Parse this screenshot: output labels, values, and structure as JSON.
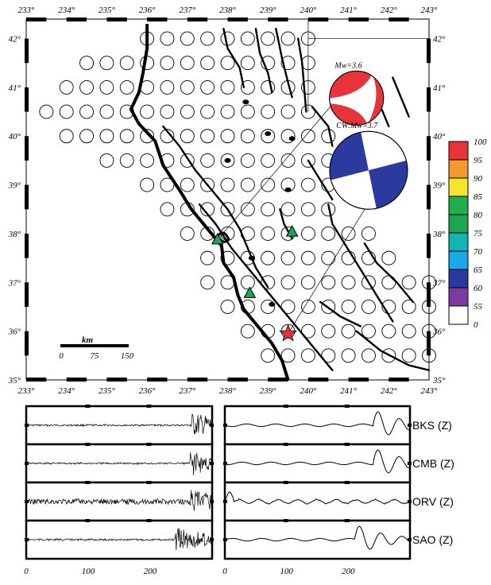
{
  "map": {
    "lon_ticks": [
      "233°",
      "234°",
      "235°",
      "236°",
      "237°",
      "238°",
      "239°",
      "240°",
      "241°",
      "242°",
      "243°"
    ],
    "lat_ticks": [
      "35°",
      "36°",
      "37°",
      "38°",
      "39°",
      "40°",
      "41°",
      "42°"
    ],
    "lon_range": [
      233,
      243
    ],
    "lat_range": [
      35,
      42.4
    ],
    "scale_bar": {
      "unit": "km",
      "labels": [
        "0",
        "75",
        "150"
      ]
    },
    "grid_rows": [
      {
        "lat": 42.0,
        "lon_start": 236.0,
        "lon_end": 240.0
      },
      {
        "lat": 41.5,
        "lon_start": 234.5,
        "lon_end": 240.0
      },
      {
        "lat": 41.0,
        "lon_start": 234.0,
        "lon_end": 240.0
      },
      {
        "lat": 40.5,
        "lon_start": 233.5,
        "lon_end": 240.0
      },
      {
        "lat": 40.0,
        "lon_start": 234.0,
        "lon_end": 240.5
      },
      {
        "lat": 39.5,
        "lon_start": 235.0,
        "lon_end": 240.5
      },
      {
        "lat": 39.0,
        "lon_start": 236.0,
        "lon_end": 240.5
      },
      {
        "lat": 38.5,
        "lon_start": 236.5,
        "lon_end": 240.5
      },
      {
        "lat": 38.0,
        "lon_start": 237.0,
        "lon_end": 241.5
      },
      {
        "lat": 37.5,
        "lon_start": 237.5,
        "lon_end": 242.0
      },
      {
        "lat": 37.0,
        "lon_start": 237.5,
        "lon_end": 243.0
      },
      {
        "lat": 36.5,
        "lon_start": 238.0,
        "lon_end": 243.0
      },
      {
        "lat": 36.0,
        "lon_start": 238.5,
        "lon_end": 243.0
      },
      {
        "lat": 35.5,
        "lon_start": 239.0,
        "lon_end": 243.0
      }
    ],
    "stations": [
      {
        "name": "BKS",
        "lon": 237.75,
        "lat": 37.87
      },
      {
        "name": "CMB",
        "lon": 239.6,
        "lat": 38.03
      },
      {
        "name": "SAO",
        "lon": 238.55,
        "lat": 36.77
      }
    ],
    "epicenter": {
      "lon": 239.5,
      "lat": 35.95,
      "color": "#e8333a"
    },
    "mechanisms": [
      {
        "label": "Mw=3.6",
        "color": "#e8333a",
        "lon": 241.2,
        "lat": 40.78
      },
      {
        "label": "CW:Mw=3.7",
        "color": "#2b3a9e",
        "lon": 241.5,
        "lat": 39.3
      }
    ]
  },
  "colorbar": {
    "labels": [
      "100",
      "95",
      "90",
      "85",
      "80",
      "75",
      "70",
      "65",
      "60",
      "55",
      "0"
    ],
    "colors": [
      "#e8333a",
      "#f39a2e",
      "#f5e62c",
      "#1fae4b",
      "#1fa354",
      "#14b5b0",
      "#19a9e8",
      "#2b3a9e",
      "#7b3a9e",
      "#ffffff"
    ]
  },
  "waveforms": {
    "stations": [
      "BKS (Z)",
      "CMB (Z)",
      "ORV (Z)",
      "SAO (Z)"
    ],
    "x_ticks": [
      "0",
      "100",
      "200"
    ],
    "x_range": [
      0,
      300
    ]
  }
}
